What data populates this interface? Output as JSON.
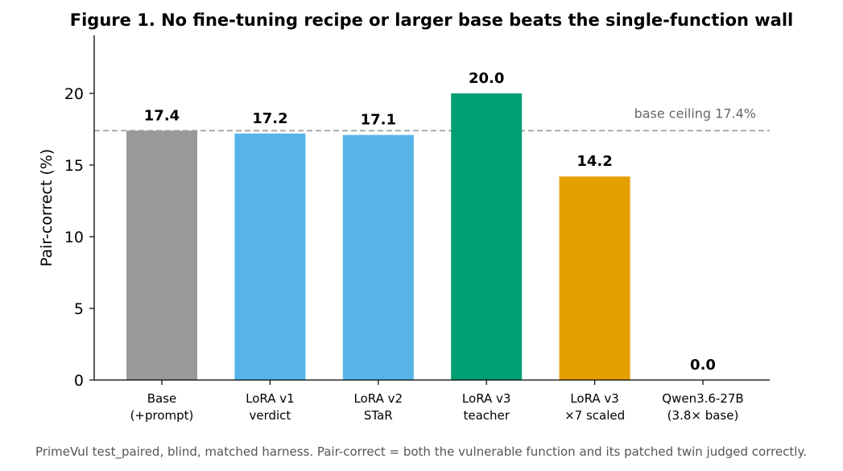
{
  "figure": {
    "title": "Figure 1.  No fine-tuning recipe or larger base beats the single-function wall",
    "caption": "PrimeVul test_paired, blind, matched harness. Pair-correct = both the vulnerable function and its patched twin judged correctly."
  },
  "chart_data": {
    "type": "bar",
    "title": "Figure 1.  No fine-tuning recipe or larger base beats the single-function wall",
    "xlabel": "",
    "ylabel": "Pair-correct (%)",
    "ylim": [
      0,
      24
    ],
    "yticks": [
      0,
      5,
      10,
      15,
      20
    ],
    "grid": false,
    "categories": [
      [
        "Base",
        "(+prompt)"
      ],
      [
        "LoRA v1",
        "verdict"
      ],
      [
        "LoRA v2",
        "STaR"
      ],
      [
        "LoRA v3",
        "teacher"
      ],
      [
        "LoRA v3",
        "×7 scaled"
      ],
      [
        "Qwen3.6-27B",
        "(3.8× base)"
      ]
    ],
    "values": [
      17.4,
      17.2,
      17.1,
      20.0,
      14.2,
      0.0
    ],
    "value_labels": [
      "17.4",
      "17.2",
      "17.1",
      "20.0",
      "14.2",
      "0.0"
    ],
    "colors": [
      "#999999",
      "#56b4e9",
      "#56b4e9",
      "#009e73",
      "#e69f00",
      "#cccccc"
    ],
    "reference_line": {
      "value": 17.4,
      "label": "base ceiling 17.4%",
      "color": "#999999",
      "style": "dashed"
    }
  }
}
